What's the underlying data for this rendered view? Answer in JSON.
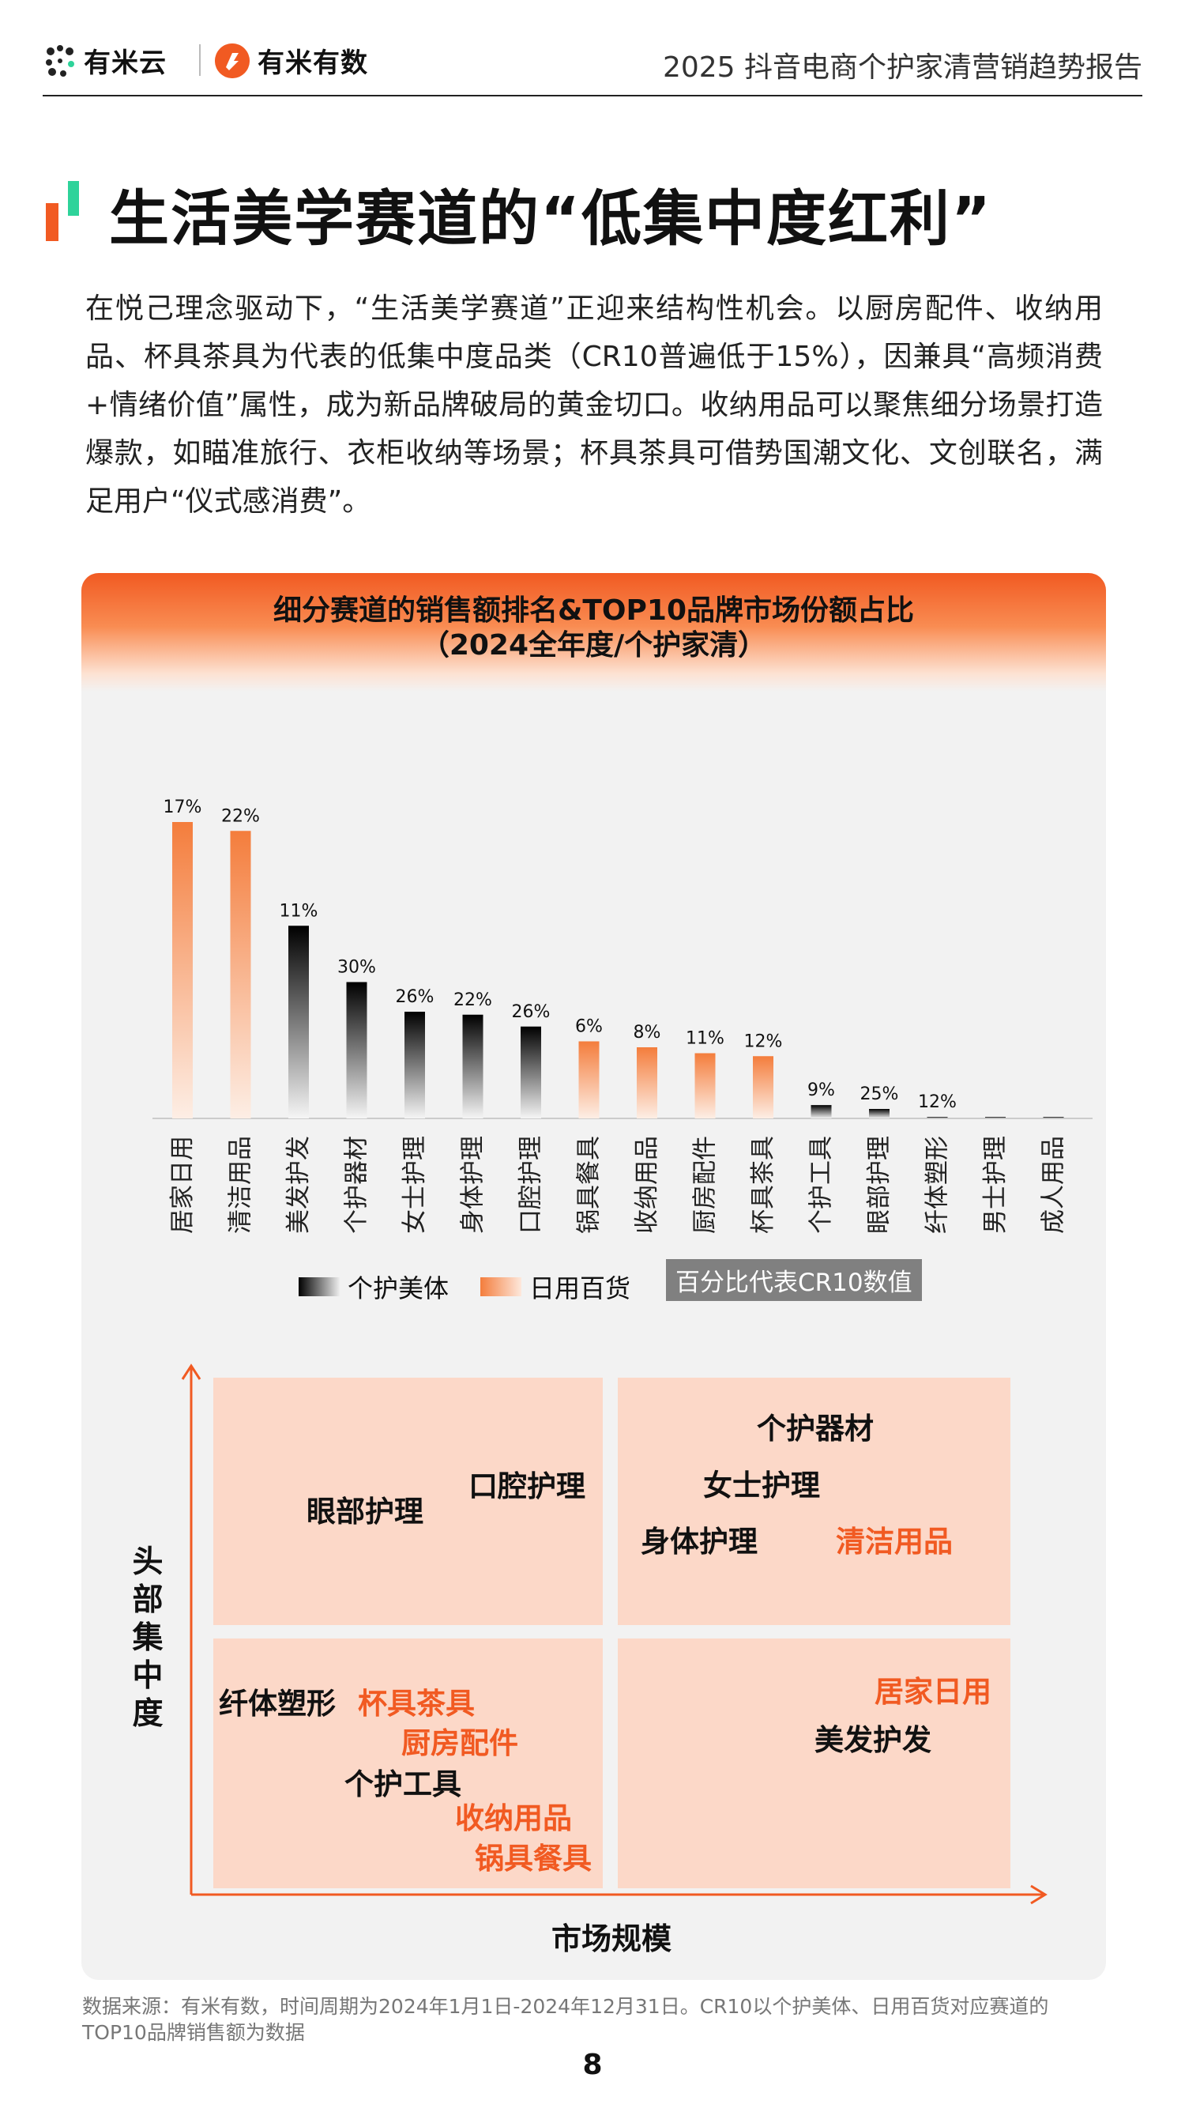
{
  "header": {
    "brand_left": "有米云",
    "brand_right": "有米有数",
    "report_title": "2025 抖音电商个护家清营销趋势报告"
  },
  "title": "生活美学赛道的“低集中度红利”",
  "intro": "在悦己理念驱动下，“生活美学赛道”正迎来结构性机会。以厨房配件、收纳用品、杯具茶具为代表的低集中度品类（CR10普遍低于15%），因兼具“高频消费+情绪价值”属性，成为新品牌破局的黄金切口。收纳用品可以聚焦细分场景打造爆款，如瞄准旅行、衣柜收纳等场景；杯具茶具可借势国潮文化、文创联名，满足用户“仪式感消费”。",
  "panel": {
    "title_line1": "细分赛道的销售额排名&TOP10品牌市场份额占比",
    "title_line2": "（2024全年度/个护家清）"
  },
  "chart_data": {
    "type": "bar",
    "title": "细分赛道的销售额排名&TOP10品牌市场份额占比（2024全年度/个护家清）",
    "note": "百分比代表CR10数值",
    "categories": [
      "居家日用",
      "清洁用品",
      "美发护发",
      "个护器材",
      "女士护理",
      "身体护理",
      "口腔护理",
      "锅具餐具",
      "收纳用品",
      "厨房配件",
      "杯具茶具",
      "个护工具",
      "眼部护理",
      "纤体塑形",
      "男士护理",
      "成人用品"
    ],
    "group": [
      "日用百货",
      "日用百货",
      "个护美体",
      "个护美体",
      "个护美体",
      "个护美体",
      "个护美体",
      "日用百货",
      "日用百货",
      "日用百货",
      "日用百货",
      "个护美体",
      "个护美体",
      "个护美体",
      "个护美体",
      "个护美体"
    ],
    "sales_rank_relative": [
      100,
      97,
      65,
      46,
      36,
      35,
      31,
      26,
      24,
      22,
      21,
      4.5,
      3.2,
      0.5,
      0.3,
      0.3
    ],
    "cr10_labels": [
      "17%",
      "22%",
      "11%",
      "30%",
      "26%",
      "22%",
      "26%",
      "6%",
      "8%",
      "11%",
      "12%",
      "9%",
      "25%",
      "12%",
      "",
      ""
    ],
    "legend": [
      {
        "name": "个护美体",
        "color": "#000000"
      },
      {
        "name": "日用百货",
        "color": "#f47d3c"
      }
    ]
  },
  "quadrant": {
    "y_axis_label": "头部集中度",
    "x_axis_label": "市场规模",
    "top_left": [
      {
        "text": "眼部护理",
        "group": "个护美体"
      },
      {
        "text": "口腔护理",
        "group": "个护美体"
      }
    ],
    "top_right": [
      {
        "text": "个护器材",
        "group": "个护美体"
      },
      {
        "text": "女士护理",
        "group": "个护美体"
      },
      {
        "text": "身体护理",
        "group": "个护美体"
      },
      {
        "text": "清洁用品",
        "group": "日用百货"
      }
    ],
    "bottom_left": [
      {
        "text": "纤体塑形",
        "group": "个护美体"
      },
      {
        "text": "杯具茶具",
        "group": "日用百货"
      },
      {
        "text": "厨房配件",
        "group": "日用百货"
      },
      {
        "text": "个护工具",
        "group": "个护美体"
      },
      {
        "text": "收纳用品",
        "group": "日用百货"
      },
      {
        "text": "锅具餐具",
        "group": "日用百货"
      }
    ],
    "bottom_right": [
      {
        "text": "居家日用",
        "group": "日用百货"
      },
      {
        "text": "美发护发",
        "group": "个护美体"
      }
    ]
  },
  "source": "数据来源：有米有数，时间周期为2024年1月1日-2024年12月31日。CR10以个护美体、日用百货对应赛道的TOP10品牌销售额为数据",
  "page_number": "8"
}
